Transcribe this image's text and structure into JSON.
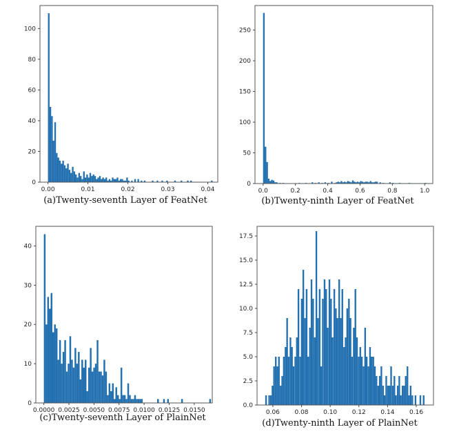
{
  "colors": {
    "bar": "#2270b0",
    "axis": "#555555"
  },
  "chart_data": [
    {
      "type": "bar",
      "caption": "(a)Twenty-seventh Layer of FeatNet",
      "xlim": [
        -0.002,
        0.0425
      ],
      "ylim": [
        0,
        115
      ],
      "xticks": [
        0.0,
        0.01,
        0.02,
        0.03,
        0.04
      ],
      "xtick_labels": [
        "0.00",
        "0.01",
        "0.02",
        "0.03",
        "0.04"
      ],
      "yticks": [
        0,
        20,
        40,
        60,
        80,
        100
      ],
      "ytick_labels": [
        "0",
        "20",
        "40",
        "60",
        "80",
        "100"
      ],
      "bin_width": 0.0004,
      "x": [
        0.0,
        0.0004,
        0.0008,
        0.0012,
        0.0016,
        0.002,
        0.0024,
        0.0028,
        0.0032,
        0.0036,
        0.004,
        0.0044,
        0.0048,
        0.0052,
        0.0056,
        0.006,
        0.0064,
        0.0068,
        0.0072,
        0.0076,
        0.008,
        0.0084,
        0.0088,
        0.0092,
        0.0096,
        0.01,
        0.0104,
        0.0108,
        0.0112,
        0.0116,
        0.012,
        0.0124,
        0.0128,
        0.0132,
        0.0136,
        0.014,
        0.0144,
        0.0148,
        0.0152,
        0.0156,
        0.016,
        0.0164,
        0.0168,
        0.0172,
        0.0176,
        0.018,
        0.0184,
        0.0188,
        0.0192,
        0.0196,
        0.02,
        0.0208,
        0.0216,
        0.0224,
        0.0232,
        0.024,
        0.026,
        0.0272,
        0.0284,
        0.0296,
        0.0316,
        0.0332,
        0.0348,
        0.0356,
        0.0408
      ],
      "values": [
        110,
        49,
        43,
        27,
        39,
        19,
        16,
        14,
        12,
        14,
        11,
        9,
        12,
        8,
        6,
        10,
        7,
        5,
        3,
        6,
        4,
        2,
        7,
        3,
        5,
        3,
        6,
        4,
        5,
        4,
        2,
        3,
        4,
        2,
        3,
        2,
        3,
        1,
        2,
        1,
        3,
        2,
        2,
        3,
        1,
        2,
        2,
        1,
        1,
        3,
        1,
        1,
        2,
        2,
        1,
        1,
        1,
        1,
        1,
        1,
        1,
        1,
        1,
        1,
        1
      ]
    },
    {
      "type": "bar",
      "caption": "(b)Twenty-ninth Layer of FeatNet",
      "xlim": [
        -0.05,
        1.05
      ],
      "ylim": [
        0,
        290
      ],
      "xticks": [
        0.0,
        0.2,
        0.4,
        0.6,
        0.8,
        1.0
      ],
      "xtick_labels": [
        "0.0",
        "0.2",
        "0.4",
        "0.6",
        "0.8",
        "1.0"
      ],
      "yticks": [
        0,
        50,
        100,
        150,
        200,
        250
      ],
      "ytick_labels": [
        "0",
        "50",
        "100",
        "150",
        "200",
        "250"
      ],
      "bin_width": 0.01,
      "x": [
        0.0,
        0.01,
        0.02,
        0.03,
        0.04,
        0.05,
        0.06,
        0.07,
        0.08,
        0.1,
        0.12,
        0.22,
        0.26,
        0.3,
        0.32,
        0.34,
        0.36,
        0.38,
        0.4,
        0.42,
        0.44,
        0.45,
        0.46,
        0.47,
        0.48,
        0.49,
        0.5,
        0.51,
        0.52,
        0.53,
        0.54,
        0.55,
        0.56,
        0.57,
        0.58,
        0.59,
        0.6,
        0.61,
        0.62,
        0.63,
        0.64,
        0.65,
        0.66,
        0.67,
        0.68,
        0.69,
        0.7,
        0.72,
        0.74,
        0.78,
        0.8,
        0.84,
        0.9,
        1.0
      ],
      "values": [
        278,
        60,
        35,
        8,
        4,
        6,
        5,
        2,
        2,
        1,
        1,
        1,
        1,
        2,
        1,
        2,
        1,
        2,
        1,
        3,
        1,
        2,
        3,
        2,
        4,
        2,
        3,
        2,
        4,
        3,
        2,
        5,
        3,
        2,
        3,
        2,
        4,
        3,
        2,
        3,
        3,
        2,
        4,
        2,
        2,
        3,
        3,
        2,
        1,
        2,
        1,
        1,
        1,
        1
      ]
    },
    {
      "type": "bar",
      "caption": "(c)Twenty-seventh Layer of PlainNet",
      "xlim": [
        -0.0008,
        0.0168
      ],
      "ylim": [
        0,
        45
      ],
      "xticks": [
        0.0,
        0.0025,
        0.005,
        0.0075,
        0.01,
        0.0125,
        0.015
      ],
      "xtick_labels": [
        "0.0000",
        "0.0025",
        "0.0050",
        "0.0075",
        "0.0100",
        "0.0125",
        "0.0150"
      ],
      "yticks": [
        0,
        10,
        20,
        30,
        40
      ],
      "ytick_labels": [
        "0",
        "10",
        "20",
        "30",
        "40"
      ],
      "bin_width": 0.00017,
      "x": [
        0.0,
        0.00017,
        0.00034,
        0.00051,
        0.00068,
        0.00085,
        0.00102,
        0.00119,
        0.00136,
        0.00153,
        0.0017,
        0.00187,
        0.00204,
        0.00221,
        0.00238,
        0.00255,
        0.00272,
        0.00289,
        0.00306,
        0.00323,
        0.0034,
        0.00357,
        0.00374,
        0.00391,
        0.00408,
        0.00425,
        0.00442,
        0.00459,
        0.00476,
        0.00493,
        0.0051,
        0.00527,
        0.00544,
        0.00561,
        0.00578,
        0.00595,
        0.00612,
        0.00629,
        0.00646,
        0.00663,
        0.0068,
        0.00697,
        0.00714,
        0.00731,
        0.00748,
        0.00765,
        0.00782,
        0.00799,
        0.00816,
        0.00833,
        0.0085,
        0.00867,
        0.00884,
        0.00901,
        0.00918,
        0.00935,
        0.00952,
        0.00969,
        0.0113,
        0.0119,
        0.0123,
        0.0137,
        0.0165
      ],
      "values": [
        43,
        20,
        27,
        24,
        28,
        18,
        20,
        19,
        11,
        16,
        10,
        13,
        16,
        8,
        10,
        17,
        11,
        9,
        14,
        10,
        13,
        6,
        11,
        9,
        11,
        3,
        9,
        14,
        8,
        9,
        10,
        16,
        8,
        8,
        7,
        11,
        8,
        2,
        5,
        3,
        5,
        1,
        4,
        2,
        1,
        9,
        2,
        2,
        1,
        5,
        2,
        1,
        1,
        2,
        1,
        1,
        1,
        1,
        1,
        1,
        1,
        1,
        1
      ]
    },
    {
      "type": "bar",
      "caption": "(d)Twenty-ninth Layer of PlainNet",
      "xlim": [
        0.049,
        0.172
      ],
      "ylim": [
        0,
        18.5
      ],
      "xticks": [
        0.06,
        0.08,
        0.1,
        0.12,
        0.14,
        0.16
      ],
      "xtick_labels": [
        "0.06",
        "0.08",
        "0.10",
        "0.12",
        "0.14",
        "0.16"
      ],
      "yticks": [
        0,
        2.5,
        5.0,
        7.5,
        10.0,
        12.5,
        15.0,
        17.5
      ],
      "ytick_labels": [
        "0.0",
        "2.5",
        "5.0",
        "7.5",
        "10.0",
        "12.5",
        "15.0",
        "17.5"
      ],
      "bin_width": 0.00113,
      "x": [
        0.0547,
        0.0558,
        0.0569,
        0.0581,
        0.0592,
        0.0603,
        0.0615,
        0.0626,
        0.0637,
        0.0649,
        0.066,
        0.0671,
        0.0683,
        0.0694,
        0.0705,
        0.0717,
        0.0728,
        0.0739,
        0.0751,
        0.0762,
        0.0773,
        0.0785,
        0.0796,
        0.0807,
        0.0819,
        0.083,
        0.0841,
        0.0853,
        0.0864,
        0.0875,
        0.0887,
        0.0898,
        0.0909,
        0.0921,
        0.0932,
        0.0943,
        0.0955,
        0.0966,
        0.0977,
        0.0989,
        0.1,
        0.1011,
        0.1023,
        0.1034,
        0.1045,
        0.1057,
        0.1068,
        0.1079,
        0.1091,
        0.1102,
        0.1113,
        0.1125,
        0.1136,
        0.1147,
        0.1159,
        0.117,
        0.1181,
        0.1193,
        0.1204,
        0.1215,
        0.1227,
        0.1238,
        0.1249,
        0.1261,
        0.1272,
        0.1283,
        0.1295,
        0.1306,
        0.1317,
        0.1329,
        0.134,
        0.1351,
        0.1363,
        0.1374,
        0.1385,
        0.1397,
        0.1408,
        0.1419,
        0.1431,
        0.1442,
        0.1453,
        0.1465,
        0.1476,
        0.1487,
        0.1499,
        0.151,
        0.1521,
        0.1533,
        0.1544,
        0.1555,
        0.1567,
        0.1578,
        0.1589,
        0.1601,
        0.1612,
        0.1623,
        0.1635,
        0.1646
      ],
      "values": [
        1,
        0,
        1,
        1,
        2,
        4,
        5,
        4,
        5,
        2,
        3,
        5,
        6,
        9,
        5,
        7,
        6,
        4,
        5,
        7,
        12,
        5,
        11,
        14,
        9,
        12,
        5,
        8,
        13,
        11,
        7,
        18,
        9,
        12,
        4,
        11,
        13,
        12,
        8,
        13,
        11,
        7,
        12,
        10,
        9,
        13,
        9,
        12,
        6,
        7,
        10,
        11,
        9,
        5,
        8,
        12,
        7,
        5,
        6,
        5,
        4,
        8,
        5,
        4,
        6,
        5,
        5,
        4,
        3,
        2,
        3,
        4,
        2,
        1,
        3,
        2,
        2,
        4,
        2,
        3,
        1,
        2,
        3,
        1,
        2,
        2,
        3,
        4,
        1,
        2,
        1,
        0,
        1,
        0,
        0,
        1,
        0,
        1
      ]
    }
  ]
}
